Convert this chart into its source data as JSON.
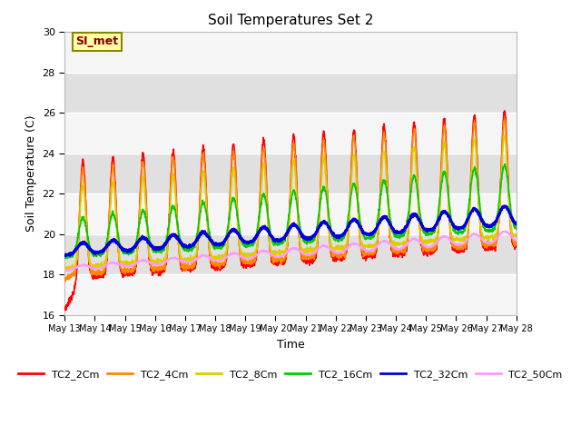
{
  "title": "Soil Temperatures Set 2",
  "xlabel": "Time",
  "ylabel": "Soil Temperature (C)",
  "ylim": [
    16,
    30
  ],
  "yticks": [
    16,
    18,
    20,
    22,
    24,
    26,
    28,
    30
  ],
  "x_start_day": 13,
  "x_end_day": 28,
  "x_tick_days": [
    13,
    14,
    15,
    16,
    17,
    18,
    19,
    20,
    21,
    22,
    23,
    24,
    25,
    26,
    27,
    28
  ],
  "series_order": [
    "TC2_2Cm",
    "TC2_4Cm",
    "TC2_8Cm",
    "TC2_16Cm",
    "TC2_32Cm",
    "TC2_50Cm"
  ],
  "series": {
    "TC2_2Cm": {
      "color": "#ff0000",
      "lw": 1.2
    },
    "TC2_4Cm": {
      "color": "#ff8800",
      "lw": 1.2
    },
    "TC2_8Cm": {
      "color": "#ddcc00",
      "lw": 1.2
    },
    "TC2_16Cm": {
      "color": "#00cc00",
      "lw": 1.2
    },
    "TC2_32Cm": {
      "color": "#0000dd",
      "lw": 2.0
    },
    "TC2_50Cm": {
      "color": "#ff99ff",
      "lw": 1.2
    }
  },
  "annotation_text": "SI_met",
  "annotation_color": "#880000",
  "annotation_bg": "#ffffaa",
  "annotation_border": "#888800",
  "plot_bg_light": "#f5f5f5",
  "plot_bg_dark": "#e0e0e0",
  "n_days": 16,
  "pts_per_day": 144,
  "peak_hour": 14.5,
  "trough_hour": 4.0,
  "base_2cm": [
    19.3,
    21.3
  ],
  "amp_2cm": [
    4.2,
    5.0
  ],
  "base_4cm": [
    19.3,
    21.3
  ],
  "amp_4cm": [
    3.8,
    4.6
  ],
  "base_8cm": [
    19.3,
    21.3
  ],
  "amp_8cm": [
    3.0,
    3.8
  ],
  "base_16cm": [
    19.5,
    21.5
  ],
  "amp_16cm": [
    1.2,
    2.2
  ],
  "base_32cm": [
    19.2,
    21.0
  ],
  "amp_32cm": [
    0.3,
    0.55
  ],
  "base_50cm": [
    18.3,
    20.0
  ],
  "amp_50cm": [
    0.1,
    0.3
  ],
  "sharpness": 4.5
}
